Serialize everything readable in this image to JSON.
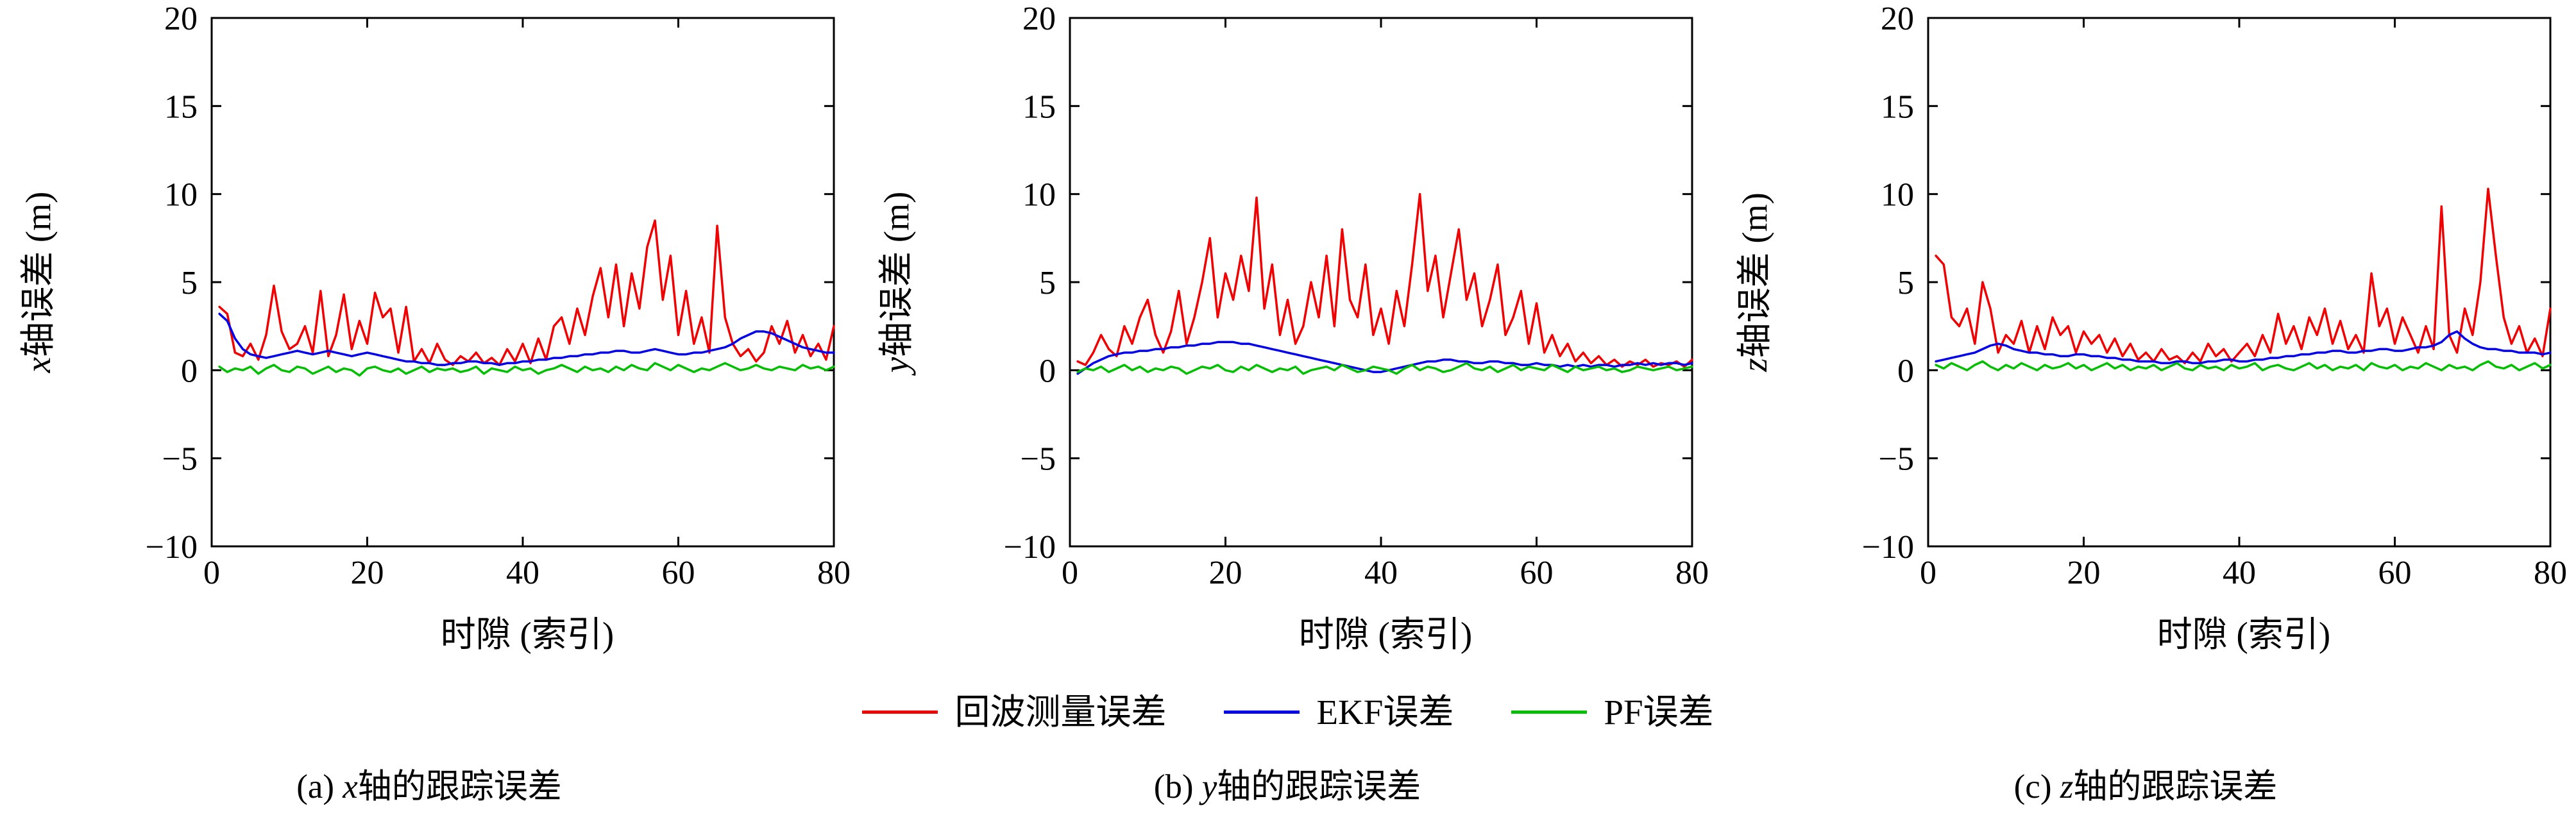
{
  "page": {
    "background": "#ffffff"
  },
  "colors": {
    "axis": "#000000",
    "measurement": "#f00000",
    "ekf": "#0000ee",
    "pf": "#00c000"
  },
  "legend": {
    "items": [
      {
        "key": "measurement",
        "label": "回波测量误差",
        "color": "#f00000"
      },
      {
        "key": "ekf",
        "label": "EKF误差",
        "color": "#0000ee"
      },
      {
        "key": "pf",
        "label": "PF误差",
        "color": "#00c000"
      }
    ]
  },
  "chart_data": [
    {
      "type": "line",
      "xlabel": "时隙 (索引)",
      "ylabel_var": "x",
      "ylabel_rest": "轴误差 (m)",
      "caption_prefix": "(a) ",
      "caption_var": "x",
      "caption_rest": "轴的跟踪误差",
      "xlim": [
        0,
        80
      ],
      "ylim": [
        -10,
        20
      ],
      "xticks": [
        0,
        20,
        40,
        60,
        80
      ],
      "yticks": [
        -10,
        -5,
        0,
        5,
        10,
        15,
        20
      ],
      "x_first": 1,
      "x_step": 1,
      "legend_position": "shared-bottom",
      "grid": false,
      "series": [
        {
          "key": "measurement",
          "name": "回波测量误差",
          "color": "#f00000",
          "values": [
            3.6,
            3.2,
            1.0,
            0.8,
            1.5,
            0.6,
            2.0,
            4.8,
            2.2,
            1.2,
            1.5,
            2.5,
            1.0,
            4.5,
            0.8,
            2.0,
            4.3,
            1.2,
            2.8,
            1.5,
            4.4,
            3.0,
            3.5,
            1.0,
            3.6,
            0.5,
            1.2,
            0.4,
            1.5,
            0.6,
            0.3,
            0.8,
            0.5,
            1.0,
            0.4,
            0.7,
            0.3,
            1.2,
            0.5,
            1.5,
            0.4,
            1.8,
            0.6,
            2.5,
            3.0,
            1.5,
            3.5,
            2.0,
            4.2,
            5.8,
            3.0,
            6.0,
            2.5,
            5.5,
            3.5,
            7.0,
            8.5,
            4.0,
            6.5,
            2.0,
            4.5,
            1.5,
            3.0,
            1.0,
            8.2,
            3.0,
            1.5,
            0.8,
            1.2,
            0.5,
            1.0,
            2.5,
            1.5,
            2.8,
            1.0,
            2.0,
            0.8,
            1.5,
            0.6,
            2.5
          ]
        },
        {
          "key": "ekf",
          "name": "EKF误差",
          "color": "#0000ee",
          "values": [
            3.2,
            2.8,
            1.8,
            1.2,
            0.9,
            0.8,
            0.7,
            0.8,
            0.9,
            1.0,
            1.1,
            1.0,
            0.9,
            1.0,
            1.1,
            1.0,
            0.9,
            0.8,
            0.9,
            1.0,
            0.9,
            0.8,
            0.7,
            0.6,
            0.5,
            0.5,
            0.4,
            0.4,
            0.3,
            0.3,
            0.4,
            0.4,
            0.5,
            0.5,
            0.4,
            0.4,
            0.3,
            0.4,
            0.4,
            0.5,
            0.5,
            0.6,
            0.6,
            0.7,
            0.7,
            0.8,
            0.8,
            0.9,
            0.9,
            1.0,
            1.0,
            1.1,
            1.1,
            1.0,
            1.0,
            1.1,
            1.2,
            1.1,
            1.0,
            0.9,
            0.9,
            1.0,
            1.0,
            1.1,
            1.2,
            1.3,
            1.5,
            1.8,
            2.0,
            2.2,
            2.2,
            2.1,
            1.9,
            1.7,
            1.5,
            1.3,
            1.2,
            1.1,
            1.0,
            1.0
          ]
        },
        {
          "key": "pf",
          "name": "PF误差",
          "color": "#00c000",
          "values": [
            0.2,
            -0.1,
            0.1,
            0.0,
            0.2,
            -0.2,
            0.1,
            0.3,
            0.0,
            -0.1,
            0.2,
            0.1,
            -0.2,
            0.0,
            0.2,
            -0.1,
            0.1,
            0.0,
            -0.3,
            0.1,
            0.2,
            0.0,
            -0.1,
            0.1,
            -0.2,
            0.0,
            0.2,
            -0.1,
            0.1,
            0.0,
            0.1,
            -0.1,
            0.0,
            0.2,
            -0.2,
            0.1,
            0.0,
            -0.1,
            0.2,
            0.0,
            0.1,
            -0.2,
            0.0,
            0.1,
            0.3,
            0.1,
            -0.1,
            0.2,
            0.0,
            0.1,
            -0.1,
            0.2,
            0.0,
            0.3,
            0.1,
            0.0,
            0.4,
            0.2,
            0.0,
            0.3,
            0.1,
            -0.1,
            0.1,
            0.0,
            0.2,
            0.4,
            0.2,
            0.0,
            0.1,
            0.3,
            0.1,
            0.0,
            0.2,
            0.1,
            0.0,
            0.3,
            0.1,
            0.2,
            0.0,
            0.2
          ]
        }
      ]
    },
    {
      "type": "line",
      "xlabel": "时隙 (索引)",
      "ylabel_var": "y",
      "ylabel_rest": "轴误差 (m)",
      "caption_prefix": "(b) ",
      "caption_var": "y",
      "caption_rest": "轴的跟踪误差",
      "xlim": [
        0,
        80
      ],
      "ylim": [
        -10,
        20
      ],
      "xticks": [
        0,
        20,
        40,
        60,
        80
      ],
      "yticks": [
        -10,
        -5,
        0,
        5,
        10,
        15,
        20
      ],
      "x_first": 1,
      "x_step": 1,
      "legend_position": "shared-bottom",
      "grid": false,
      "series": [
        {
          "key": "measurement",
          "name": "回波测量误差",
          "color": "#f00000",
          "values": [
            0.5,
            0.3,
            1.0,
            2.0,
            1.2,
            0.8,
            2.5,
            1.5,
            3.0,
            4.0,
            2.0,
            1.0,
            2.2,
            4.5,
            1.5,
            3.0,
            5.0,
            7.5,
            3.0,
            5.5,
            4.0,
            6.5,
            4.5,
            9.8,
            3.5,
            6.0,
            2.0,
            4.0,
            1.5,
            2.5,
            5.0,
            3.0,
            6.5,
            2.5,
            8.0,
            4.0,
            3.0,
            6.0,
            2.0,
            3.5,
            1.5,
            4.5,
            2.5,
            6.0,
            10.0,
            4.5,
            6.5,
            3.0,
            5.5,
            8.0,
            4.0,
            5.5,
            2.5,
            4.0,
            6.0,
            2.0,
            3.0,
            4.5,
            1.5,
            3.8,
            1.0,
            2.0,
            0.8,
            1.5,
            0.5,
            1.0,
            0.4,
            0.8,
            0.3,
            0.6,
            0.2,
            0.5,
            0.3,
            0.6,
            0.2,
            0.4,
            0.3,
            0.5,
            0.2,
            0.6
          ]
        },
        {
          "key": "ekf",
          "name": "EKF误差",
          "color": "#0000ee",
          "values": [
            -0.2,
            0.1,
            0.4,
            0.6,
            0.8,
            0.9,
            1.0,
            1.0,
            1.1,
            1.1,
            1.2,
            1.2,
            1.3,
            1.3,
            1.4,
            1.4,
            1.5,
            1.5,
            1.6,
            1.6,
            1.6,
            1.5,
            1.5,
            1.4,
            1.3,
            1.2,
            1.1,
            1.0,
            0.9,
            0.8,
            0.7,
            0.6,
            0.5,
            0.4,
            0.3,
            0.2,
            0.1,
            0.0,
            -0.1,
            -0.1,
            0.0,
            0.1,
            0.2,
            0.3,
            0.4,
            0.5,
            0.5,
            0.6,
            0.6,
            0.5,
            0.5,
            0.4,
            0.4,
            0.5,
            0.5,
            0.4,
            0.4,
            0.3,
            0.3,
            0.4,
            0.3,
            0.3,
            0.2,
            0.3,
            0.2,
            0.3,
            0.2,
            0.3,
            0.3,
            0.2,
            0.3,
            0.3,
            0.4,
            0.3,
            0.4,
            0.3,
            0.4,
            0.4,
            0.3,
            0.4
          ]
        },
        {
          "key": "pf",
          "name": "PF误差",
          "color": "#00c000",
          "values": [
            -0.1,
            0.1,
            0.0,
            0.2,
            -0.1,
            0.1,
            0.3,
            0.0,
            0.2,
            -0.1,
            0.1,
            0.0,
            0.2,
            0.1,
            -0.2,
            0.0,
            0.2,
            0.1,
            0.3,
            0.0,
            -0.1,
            0.2,
            0.0,
            0.3,
            0.1,
            -0.1,
            0.1,
            0.0,
            0.2,
            -0.2,
            0.0,
            0.1,
            0.2,
            0.0,
            0.3,
            0.1,
            -0.1,
            0.0,
            0.2,
            0.1,
            0.0,
            -0.2,
            0.1,
            0.3,
            0.0,
            0.2,
            0.1,
            -0.1,
            0.0,
            0.2,
            0.4,
            0.1,
            0.0,
            0.2,
            -0.1,
            0.1,
            0.3,
            0.0,
            0.2,
            0.1,
            0.0,
            0.3,
            0.1,
            -0.1,
            0.2,
            0.0,
            0.1,
            0.2,
            0.0,
            0.1,
            -0.1,
            0.0,
            0.2,
            0.1,
            0.0,
            0.1,
            0.2,
            0.0,
            0.1,
            0.2
          ]
        }
      ]
    },
    {
      "type": "line",
      "xlabel": "时隙 (索引)",
      "ylabel_var": "z",
      "ylabel_rest": "轴误差 (m)",
      "caption_prefix": "(c) ",
      "caption_var": "z",
      "caption_rest": "轴的跟踪误差",
      "xlim": [
        0,
        80
      ],
      "ylim": [
        -10,
        20
      ],
      "xticks": [
        0,
        20,
        40,
        60,
        80
      ],
      "yticks": [
        -10,
        -5,
        0,
        5,
        10,
        15,
        20
      ],
      "x_first": 1,
      "x_step": 1,
      "legend_position": "shared-bottom",
      "grid": false,
      "series": [
        {
          "key": "measurement",
          "name": "回波测量误差",
          "color": "#f00000",
          "values": [
            6.5,
            6.0,
            3.0,
            2.5,
            3.5,
            1.5,
            5.0,
            3.5,
            1.0,
            2.0,
            1.5,
            2.8,
            1.0,
            2.5,
            1.2,
            3.0,
            2.0,
            2.5,
            1.0,
            2.2,
            1.5,
            2.0,
            1.0,
            1.8,
            0.8,
            1.5,
            0.6,
            1.0,
            0.5,
            1.2,
            0.6,
            0.8,
            0.4,
            1.0,
            0.5,
            1.5,
            0.8,
            1.2,
            0.5,
            1.0,
            1.5,
            0.8,
            2.0,
            1.0,
            3.2,
            1.5,
            2.5,
            1.2,
            3.0,
            2.0,
            3.5,
            1.5,
            2.8,
            1.2,
            2.0,
            1.0,
            5.5,
            2.5,
            3.5,
            1.5,
            3.0,
            2.0,
            1.0,
            2.5,
            1.2,
            9.3,
            2.0,
            1.0,
            3.5,
            2.0,
            5.0,
            10.3,
            6.5,
            3.0,
            1.5,
            2.5,
            1.0,
            1.8,
            0.8,
            3.5
          ]
        },
        {
          "key": "ekf",
          "name": "EKF误差",
          "color": "#0000ee",
          "values": [
            0.5,
            0.6,
            0.7,
            0.8,
            0.9,
            1.0,
            1.2,
            1.4,
            1.5,
            1.4,
            1.2,
            1.1,
            1.0,
            1.0,
            0.9,
            0.9,
            0.8,
            0.8,
            0.9,
            0.9,
            0.8,
            0.8,
            0.7,
            0.7,
            0.6,
            0.6,
            0.5,
            0.5,
            0.5,
            0.4,
            0.4,
            0.5,
            0.5,
            0.4,
            0.4,
            0.5,
            0.5,
            0.6,
            0.6,
            0.5,
            0.5,
            0.6,
            0.6,
            0.7,
            0.7,
            0.8,
            0.8,
            0.9,
            0.9,
            1.0,
            1.0,
            1.1,
            1.1,
            1.0,
            1.0,
            1.1,
            1.1,
            1.2,
            1.2,
            1.1,
            1.1,
            1.2,
            1.3,
            1.3,
            1.4,
            1.6,
            2.0,
            2.2,
            1.8,
            1.5,
            1.3,
            1.2,
            1.2,
            1.1,
            1.1,
            1.0,
            1.0,
            1.0,
            0.9,
            1.0
          ]
        },
        {
          "key": "pf",
          "name": "PF误差",
          "color": "#00c000",
          "values": [
            0.3,
            0.1,
            0.4,
            0.2,
            0.0,
            0.3,
            0.5,
            0.2,
            0.0,
            0.3,
            0.1,
            0.4,
            0.2,
            0.0,
            0.3,
            0.1,
            0.2,
            0.4,
            0.1,
            0.3,
            0.0,
            0.2,
            0.4,
            0.1,
            0.3,
            0.0,
            0.2,
            0.1,
            0.3,
            0.0,
            0.2,
            0.4,
            0.1,
            0.0,
            0.3,
            0.1,
            0.2,
            0.0,
            0.3,
            0.1,
            0.2,
            0.4,
            0.0,
            0.2,
            0.3,
            0.1,
            0.0,
            0.2,
            0.4,
            0.1,
            0.3,
            0.0,
            0.2,
            0.1,
            0.3,
            0.0,
            0.4,
            0.2,
            0.1,
            0.3,
            0.0,
            0.2,
            0.1,
            0.4,
            0.2,
            0.0,
            0.3,
            0.1,
            0.2,
            0.0,
            0.3,
            0.5,
            0.2,
            0.1,
            0.3,
            0.0,
            0.2,
            0.4,
            0.1,
            0.3
          ]
        }
      ]
    }
  ]
}
